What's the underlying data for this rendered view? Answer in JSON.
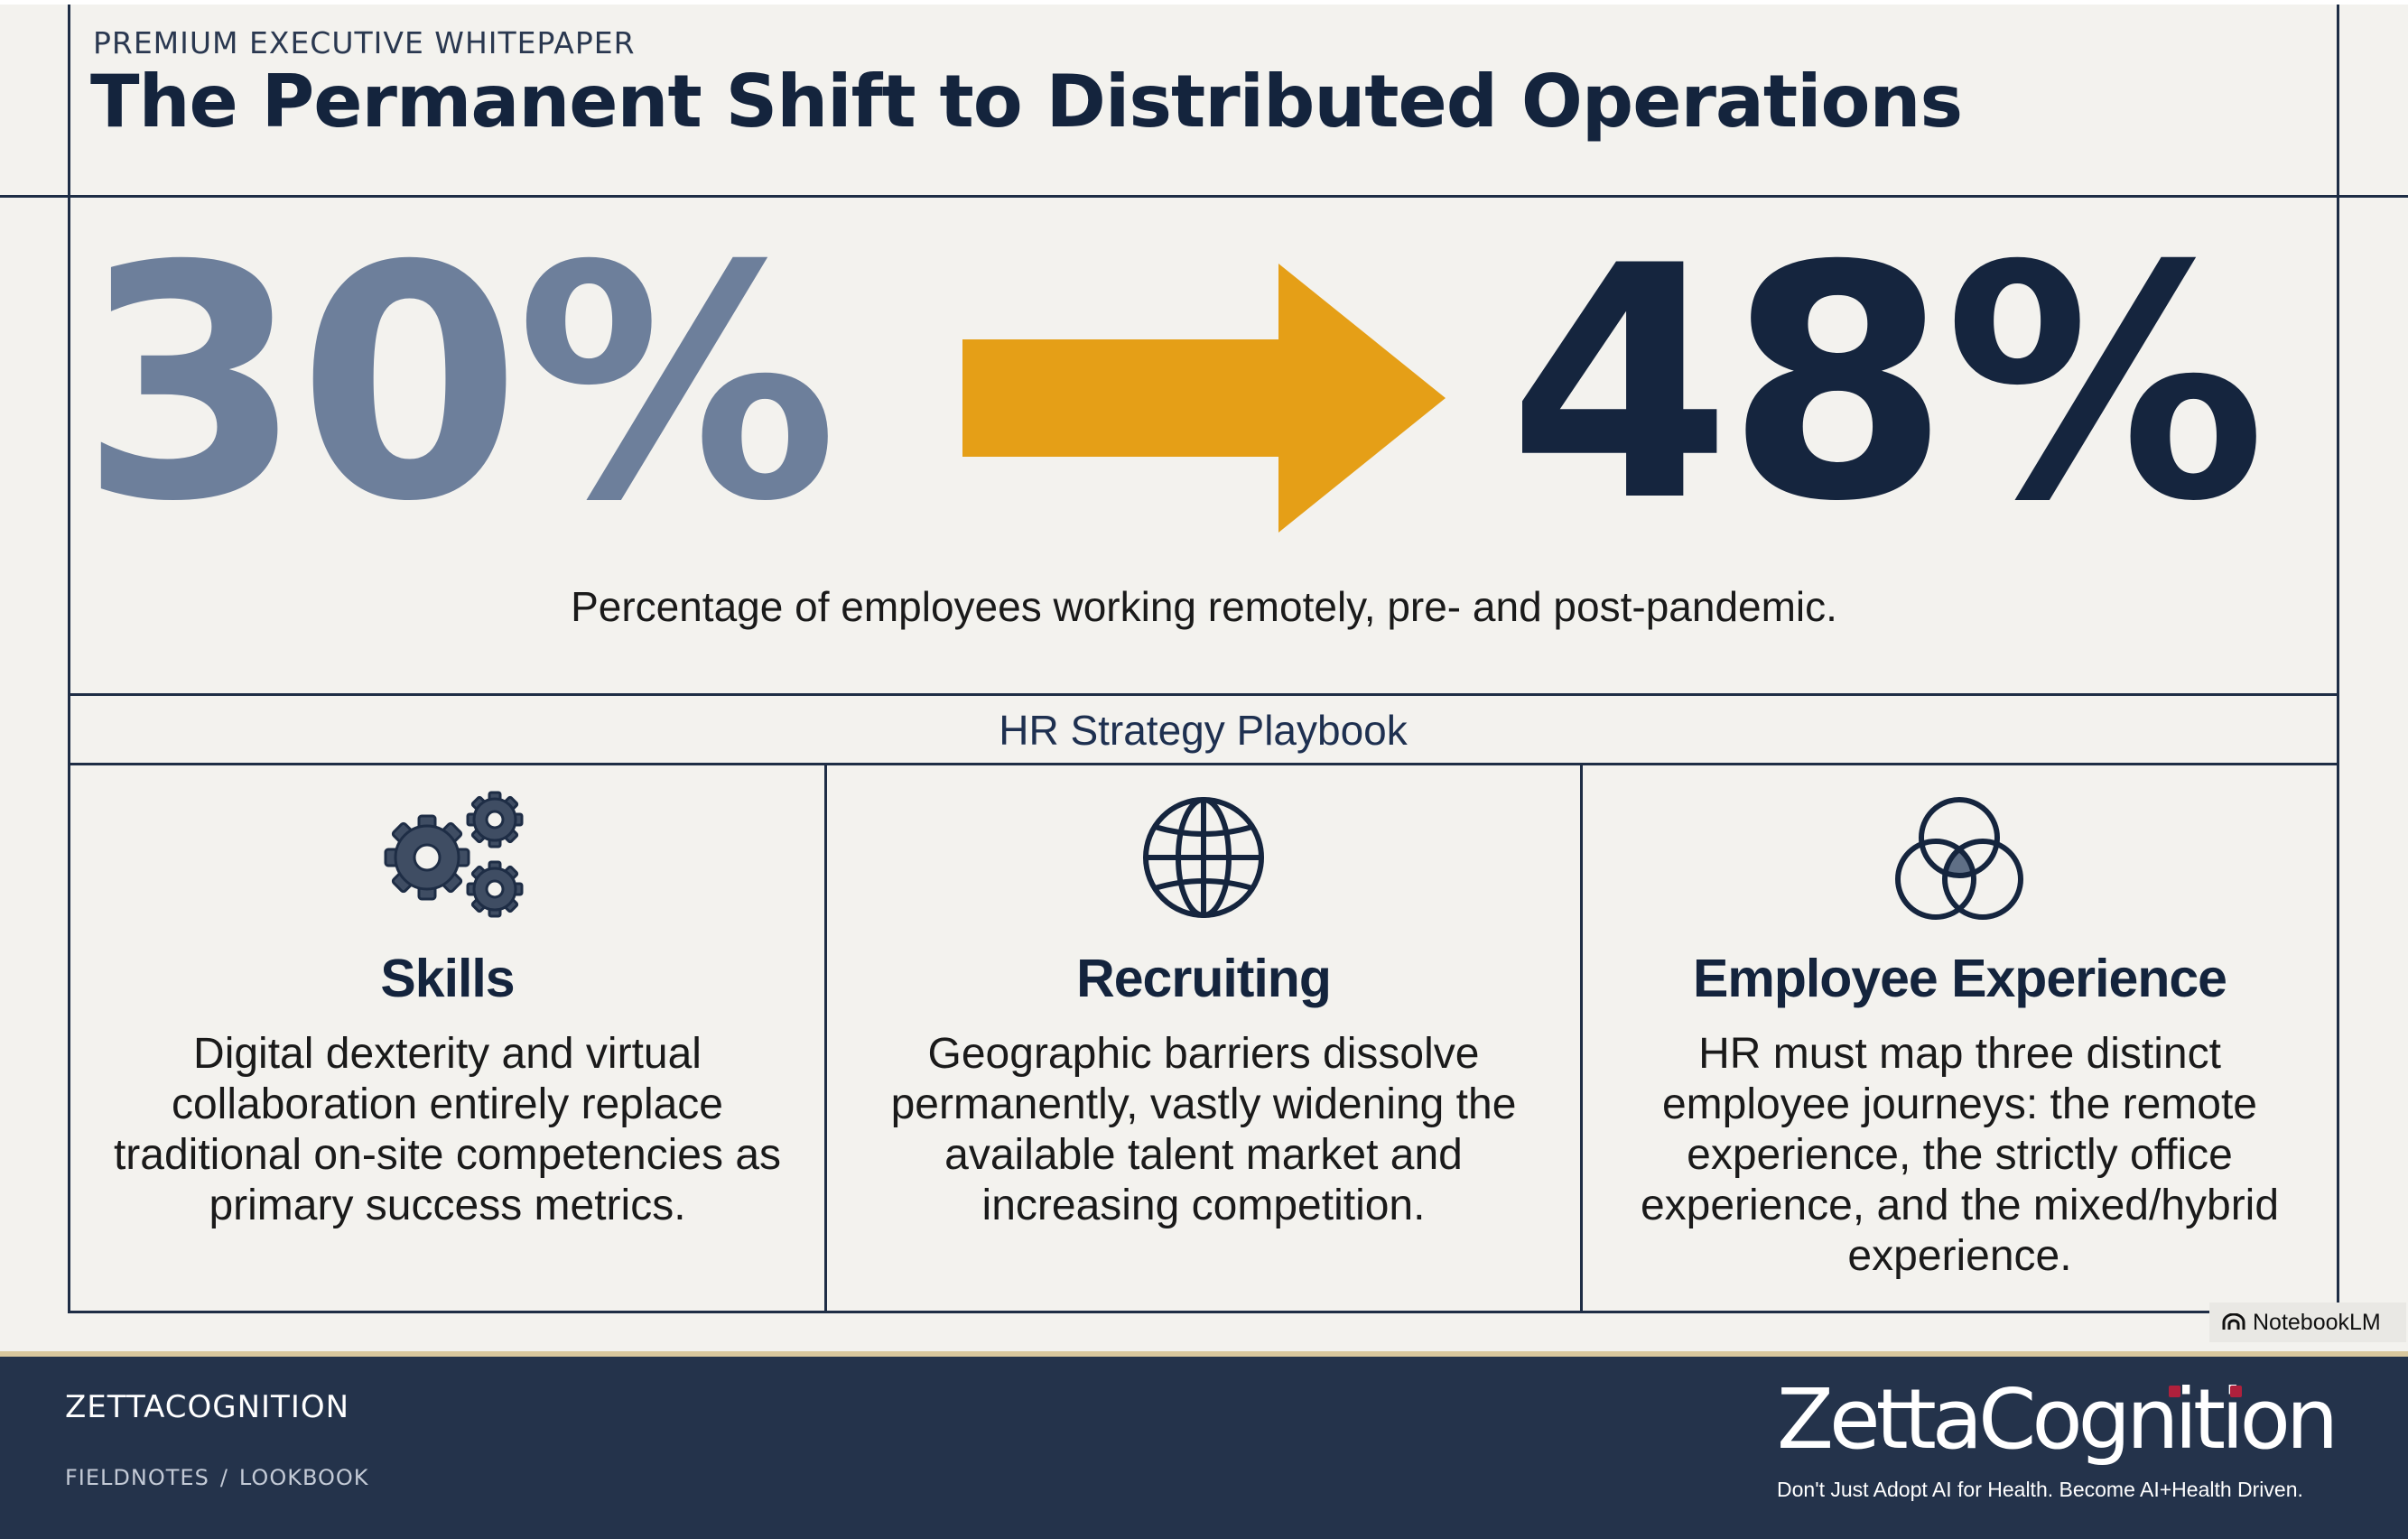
{
  "header": {
    "kicker": "PREMIUM EXECUTIVE WHITEPAPER",
    "title": "The Permanent Shift to Distributed Operations"
  },
  "stat": {
    "before": "30%",
    "after": "48%",
    "caption": "Percentage of employees working remotely, pre- and post-pandemic."
  },
  "playbook": {
    "title": "HR Strategy Playbook",
    "cards": [
      {
        "icon": "gears-icon",
        "title": "Skills",
        "body": "Digital dexterity and virtual collaboration entirely replace traditional on-site competencies as primary success metrics."
      },
      {
        "icon": "globe-icon",
        "title": "Recruiting",
        "body": "Geographic barriers dissolve permanently, vastly widening the available talent market and increasing competition."
      },
      {
        "icon": "venn-diagram-icon",
        "title": "Employee Experience",
        "body": "HR must map three distinct employee journeys: the remote experience, the strictly office experience, and the mixed/hybrid experience."
      }
    ]
  },
  "watermark": {
    "label": "NotebookLM"
  },
  "footer": {
    "brand": "ZETTACOGNITION",
    "breadcrumb": [
      "FIELDNOTES",
      "LOOKBOOK"
    ],
    "logo_text": "ZettaCognition",
    "tagline": "Don't Just Adopt AI for Health. Become AI+Health Driven."
  },
  "colors": {
    "background": "#f3f2ee",
    "navy": "#15253e",
    "slate": "#6d7f9b",
    "arrow_gold": "#e59f17",
    "footer": "#24334b",
    "footer_rule": "#d8c79d",
    "logo_accent": "#b0203c"
  }
}
